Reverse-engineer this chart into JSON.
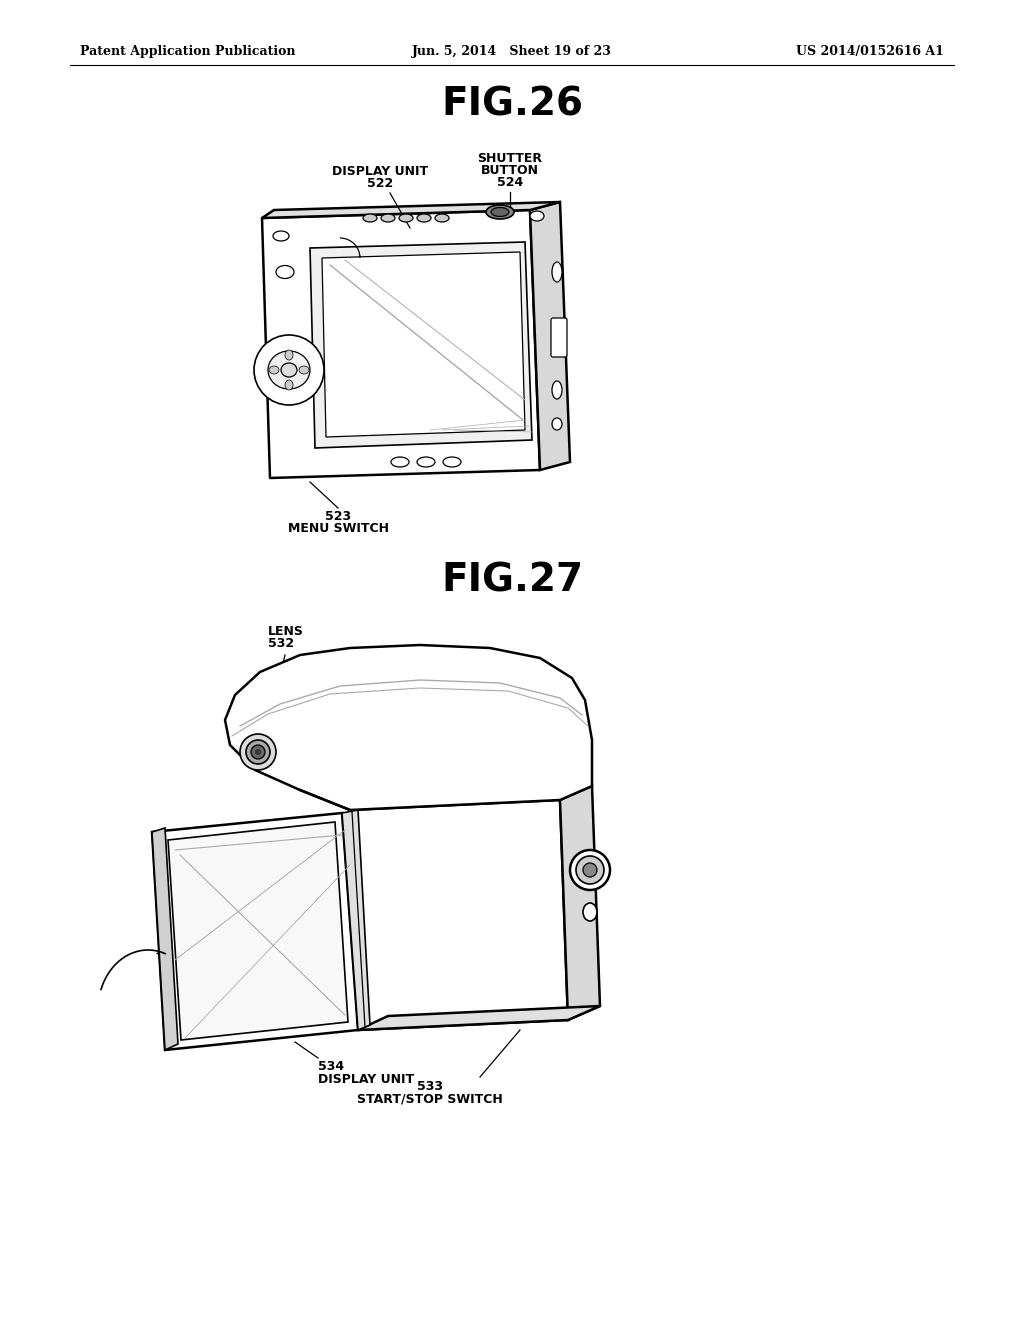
{
  "background_color": "#ffffff",
  "header_left": "Patent Application Publication",
  "header_center": "Jun. 5, 2014   Sheet 19 of 23",
  "header_right": "US 2014/0152616 A1",
  "fig26_title": "FIG.26",
  "fig27_title": "FIG.27",
  "text_color": "#000000",
  "line_color": "#000000",
  "gray_light": "#e8e8e8",
  "gray_med": "#aaaaaa",
  "gray_dark": "#666666"
}
